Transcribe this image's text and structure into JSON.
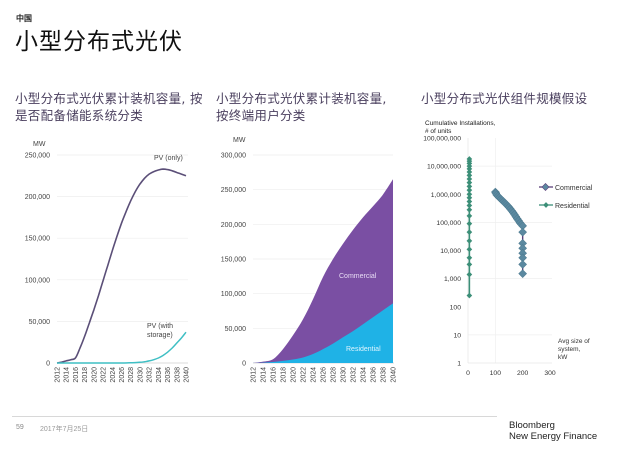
{
  "header": {
    "kicker": "中国",
    "title": "小型分布式光伏"
  },
  "footer": {
    "page_number": "59",
    "date": "2017年7月25日",
    "brand_line1": "Bloomberg",
    "brand_line2": "New Energy Finance"
  },
  "colors": {
    "pv_only": "#5b4f78",
    "pv_storage": "#3fbfc4",
    "commercial_area": "#7a4fa3",
    "residential_area": "#1fb2e6",
    "commercial_marker": "#5b89a0",
    "commercial_line": "#5a3f7a",
    "residential_marker": "#3c8f78",
    "title_text": "#4a3f5e"
  },
  "chart_data": [
    {
      "type": "line",
      "title_line1": "小型分布式光伏累计装机容量, 按",
      "title_line2": "是否配备储能系统分类",
      "ylabel": "MW",
      "xlabel": "",
      "ylim": [
        0,
        250000
      ],
      "yticks": [
        0,
        50000,
        100000,
        150000,
        200000,
        250000
      ],
      "ytick_labels": [
        "0",
        "50,000",
        "100,000",
        "150,000",
        "200,000",
        "250,000"
      ],
      "categories": [
        "2012",
        "2014",
        "2016",
        "2018",
        "2020",
        "2022",
        "2024",
        "2026",
        "2028",
        "2030",
        "2032",
        "2034",
        "2036",
        "2038",
        "2040"
      ],
      "grid": true,
      "series": [
        {
          "name": "PV (only)",
          "label": "PV (only)",
          "x": [
            2012,
            2013,
            2014,
            2015,
            2016,
            2017,
            2018,
            2019,
            2020,
            2021,
            2022,
            2023,
            2024,
            2025,
            2026,
            2027,
            2028,
            2029,
            2030,
            2031,
            2032,
            2033,
            2034,
            2035,
            2036,
            2037,
            2038,
            2039,
            2040
          ],
          "values": [
            0,
            1000,
            2500,
            4000,
            6000,
            18000,
            32000,
            48000,
            64000,
            81000,
            99000,
            117000,
            135000,
            152000,
            168000,
            182000,
            195000,
            206000,
            215000,
            222000,
            227000,
            230000,
            232000,
            233000,
            232500,
            231000,
            229000,
            227000,
            225000
          ]
        },
        {
          "name": "PV (with storage)",
          "label_line1": "PV (with",
          "label_line2": "storage)",
          "x": [
            2012,
            2014,
            2016,
            2018,
            2020,
            2022,
            2024,
            2026,
            2028,
            2030,
            2031,
            2032,
            2033,
            2034,
            2035,
            2036,
            2037,
            2038,
            2039,
            2040
          ],
          "values": [
            0,
            0,
            0,
            0,
            0,
            0,
            0,
            0,
            300,
            800,
            1500,
            2500,
            4000,
            6000,
            9000,
            13000,
            18000,
            24000,
            30000,
            37000
          ]
        }
      ]
    },
    {
      "type": "area",
      "stacked": true,
      "title_line1": "小型分布式光伏累计装机容量,",
      "title_line2": "按终端用户分类",
      "ylabel": "MW",
      "xlabel": "",
      "ylim": [
        0,
        300000
      ],
      "yticks": [
        0,
        50000,
        100000,
        150000,
        200000,
        250000,
        300000
      ],
      "ytick_labels": [
        "0",
        "50,000",
        "100,000",
        "150,000",
        "200,000",
        "250,000",
        "300,000"
      ],
      "categories": [
        "2012",
        "2014",
        "2016",
        "2018",
        "2020",
        "2022",
        "2024",
        "2026",
        "2028",
        "2030",
        "2032",
        "2034",
        "2036",
        "2038",
        "2040"
      ],
      "grid": true,
      "x": [
        2012,
        2014,
        2016,
        2018,
        2020,
        2022,
        2024,
        2026,
        2028,
        2030,
        2032,
        2034,
        2036,
        2038,
        2040
      ],
      "series": [
        {
          "name": "Residential",
          "values": [
            0,
            500,
            1500,
            3000,
            5000,
            8000,
            13000,
            20000,
            28000,
            37000,
            46000,
            56000,
            66000,
            76000,
            86000
          ]
        },
        {
          "name": "Commercial",
          "values": [
            0,
            1500,
            4000,
            17000,
            35000,
            55000,
            79000,
            104000,
            122000,
            135000,
            146000,
            154000,
            160000,
            167000,
            179000
          ]
        }
      ],
      "totals": [
        0,
        2000,
        5500,
        20000,
        40000,
        63000,
        92000,
        124000,
        150000,
        172000,
        192000,
        210000,
        226000,
        243000,
        265000
      ]
    },
    {
      "type": "scatter",
      "scale_y": "log",
      "title": "小型分布式光伏组件规模假设",
      "ylabel_line1": "Cumulative Installations,",
      "ylabel_line2": "# of units",
      "xlabel_line1": "Avg size of",
      "xlabel_line2": "system,",
      "xlabel_line3": "kW",
      "xlim": [
        0,
        300
      ],
      "ylim": [
        1,
        100000000
      ],
      "xticks": [
        0,
        100,
        200,
        300
      ],
      "xtick_labels": [
        "0",
        "100",
        "200",
        "300"
      ],
      "yticks": [
        1,
        10,
        100,
        1000,
        10000,
        100000,
        1000000,
        10000000,
        100000000
      ],
      "ytick_labels": [
        "1",
        "10",
        "100",
        "1,000",
        "10,000",
        "100,000",
        "1,000,000",
        "10,000,000",
        "100,000,000"
      ],
      "grid": true,
      "legend_position": "right",
      "series": [
        {
          "name": "Commercial",
          "x": [
            100,
            102,
            105,
            110,
            115,
            120,
            125,
            130,
            135,
            140,
            145,
            150,
            155,
            160,
            165,
            170,
            175,
            180,
            185,
            190,
            195,
            200,
            200,
            200,
            200,
            200,
            200,
            200,
            200
          ],
          "y": [
            1200000,
            1100000,
            950000,
            850000,
            760000,
            680000,
            610000,
            550000,
            490000,
            440000,
            390000,
            345000,
            300000,
            260000,
            225000,
            190000,
            160000,
            135000,
            115000,
            97000,
            85000,
            75000,
            45000,
            18000,
            12000,
            8000,
            5500,
            3200,
            1500
          ]
        },
        {
          "name": "Residential",
          "x": [
            5,
            5,
            5,
            5,
            5,
            5,
            5,
            5,
            5,
            5,
            5,
            5,
            5,
            5,
            5,
            5,
            5,
            5,
            5,
            5,
            5,
            5,
            5,
            5,
            5
          ],
          "y": [
            250,
            1400,
            3200,
            5500,
            11000,
            22000,
            45000,
            90000,
            170000,
            280000,
            400000,
            550000,
            750000,
            1000000,
            1400000,
            1900000,
            2600000,
            3500000,
            4700000,
            6200000,
            8000000,
            10000000,
            12500000,
            15000000,
            18000000
          ]
        }
      ]
    }
  ]
}
